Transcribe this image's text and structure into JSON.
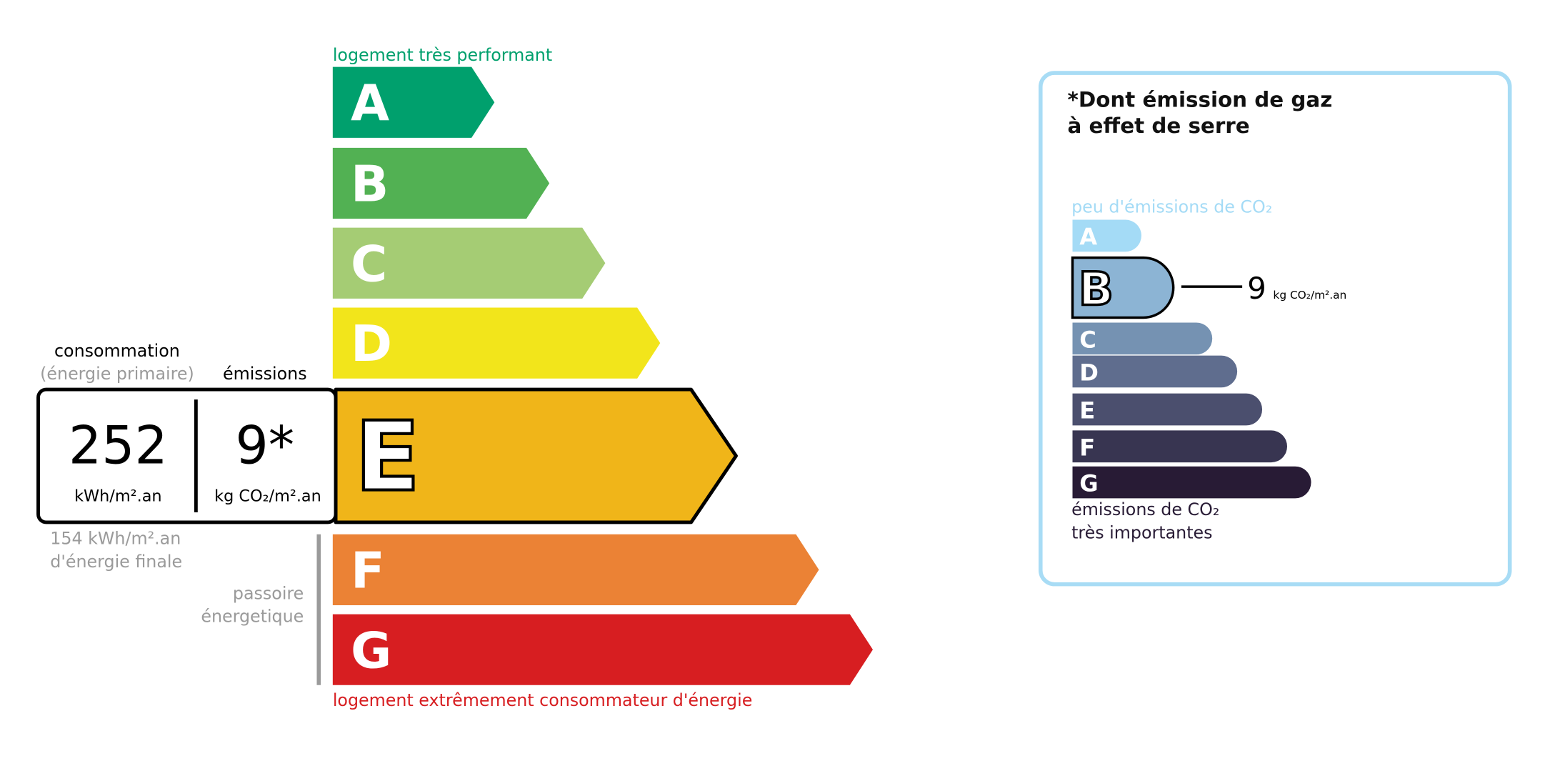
{
  "energy": {
    "top_label": "logement très performant",
    "bottom_label": "logement extrêmement consommateur d'énergie",
    "top_label_color": "#00a06d",
    "bottom_label_color": "#d71e21",
    "classes": [
      {
        "letter": "A",
        "color": "#00a06d"
      },
      {
        "letter": "B",
        "color": "#52b153"
      },
      {
        "letter": "C",
        "color": "#a5cc74"
      },
      {
        "letter": "D",
        "color": "#f2e51b"
      },
      {
        "letter": "E",
        "color": "#f0b519"
      },
      {
        "letter": "F",
        "color": "#eb8235"
      },
      {
        "letter": "G",
        "color": "#d71e21"
      }
    ],
    "current_class": "E",
    "consumption_label": "consommation",
    "consumption_sublabel": "(énergie primaire)",
    "emissions_label": "émissions",
    "consumption_value": "252",
    "consumption_unit": "kWh/m².an",
    "emissions_value": "9*",
    "emissions_unit": "kg CO₂/m².an",
    "final_energy_line1": "154 kWh/m².an",
    "final_energy_line2": "d'énergie finale",
    "passoire_line1": "passoire",
    "passoire_line2": "énergetique"
  },
  "ghg": {
    "title_line1": "*Dont émission de gaz",
    "title_line2": "à effet de serre",
    "top_label": "peu d'émissions de CO₂",
    "bottom_label_line1": "émissions de CO₂",
    "bottom_label_line2": "très importantes",
    "classes": [
      {
        "letter": "A",
        "color": "#a4dbf6"
      },
      {
        "letter": "B",
        "color": "#8cb4d4"
      },
      {
        "letter": "C",
        "color": "#7592b2"
      },
      {
        "letter": "D",
        "color": "#5f6d8e"
      },
      {
        "letter": "E",
        "color": "#4b4f6e"
      },
      {
        "letter": "F",
        "color": "#383551"
      },
      {
        "letter": "G",
        "color": "#281b35"
      }
    ],
    "current_class": "B",
    "value": "9",
    "unit": "kg CO₂/m².an",
    "border_color": "#a8dcf5"
  }
}
